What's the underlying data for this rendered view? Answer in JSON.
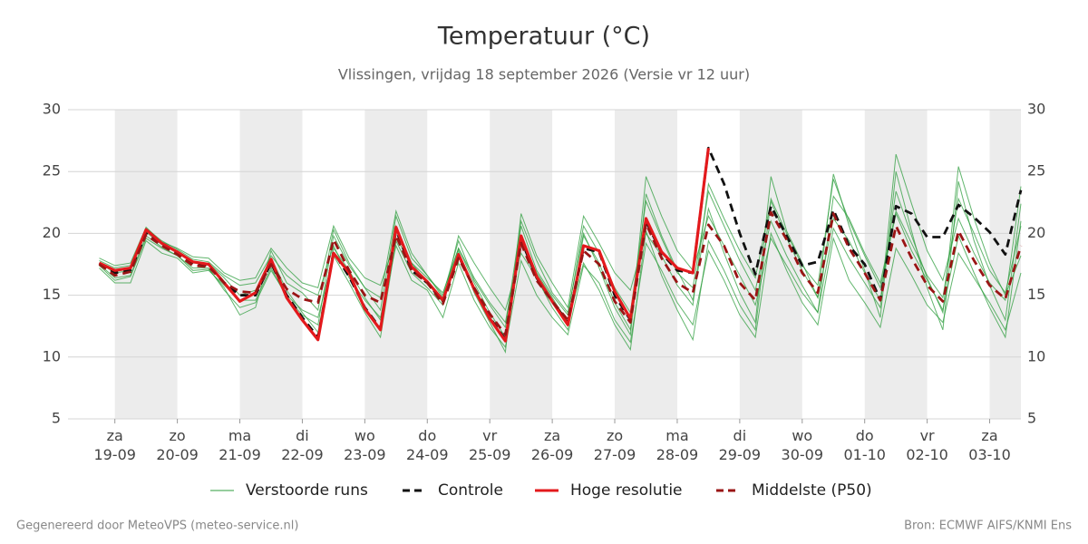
{
  "chart_data": {
    "type": "line",
    "title": "Temperatuur (°C)",
    "subtitle": "Vlissingen, vrijdag 18 september 2026 (Versie vr 12 uur)",
    "footer_left": "Gegenereerd door MeteoVPS (meteo-service.nl)",
    "footer_right": "Bron: ECMWF AIFS/KNMI Ens",
    "x": [
      -0.25,
      0,
      0.25,
      0.5,
      0.75,
      1,
      1.25,
      1.5,
      1.75,
      2,
      2.25,
      2.5,
      2.75,
      3,
      3.25,
      3.5,
      3.75,
      4,
      4.25,
      4.5,
      4.75,
      5,
      5.25,
      5.5,
      5.75,
      6,
      6.25,
      6.5,
      6.75,
      7,
      7.25,
      7.5,
      7.75,
      8,
      8.25,
      8.5,
      8.75,
      9,
      9.25,
      9.5,
      9.75,
      10,
      10.25,
      10.5,
      10.75,
      11,
      11.25,
      11.5,
      11.75,
      12,
      12.25,
      12.5,
      12.75,
      13,
      13.25,
      13.5,
      13.75,
      14,
      14.25,
      14.5
    ],
    "xlim": [
      -0.75,
      14.5
    ],
    "xticks": [
      {
        "value": 0,
        "label": "za\n19-09"
      },
      {
        "value": 1,
        "label": "zo\n20-09"
      },
      {
        "value": 2,
        "label": "ma\n21-09"
      },
      {
        "value": 3,
        "label": "di\n22-09"
      },
      {
        "value": 4,
        "label": "wo\n23-09"
      },
      {
        "value": 5,
        "label": "do\n24-09"
      },
      {
        "value": 6,
        "label": "vr\n25-09"
      },
      {
        "value": 7,
        "label": "za\n26-09"
      },
      {
        "value": 8,
        "label": "zo\n27-09"
      },
      {
        "value": 9,
        "label": "ma\n28-09"
      },
      {
        "value": 10,
        "label": "di\n29-09"
      },
      {
        "value": 11,
        "label": "wo\n30-09"
      },
      {
        "value": 12,
        "label": "do\n01-10"
      },
      {
        "value": 13,
        "label": "vr\n02-10"
      },
      {
        "value": 14,
        "label": "za\n03-10"
      }
    ],
    "ylim": [
      5,
      30
    ],
    "yticks": [
      5,
      10,
      15,
      20,
      25,
      30
    ],
    "grid": true,
    "ensemble": {
      "name": "Verstoorde runs",
      "color": "#2e9e3e",
      "members": [
        [
          17.4,
          16.2,
          16.5,
          19.6,
          18.8,
          18.2,
          17.0,
          17.1,
          15.6,
          13.4,
          14.0,
          18.6,
          16.0,
          15.2,
          13.8,
          20.3,
          17.6,
          15.6,
          13.8,
          21.4,
          18.0,
          16.6,
          15.0,
          19.4,
          16.2,
          14.2,
          12.4,
          21.0,
          17.8,
          15.2,
          13.6,
          20.0,
          17.2,
          14.0,
          11.8,
          23.2,
          19.8,
          17.0,
          14.6,
          22.0,
          18.4,
          15.2,
          12.8,
          24.6,
          20.2,
          17.6,
          14.8,
          24.8,
          20.6,
          17.0,
          13.2,
          25.0,
          20.2,
          15.6,
          12.2,
          24.2,
          19.4,
          15.8,
          13.0,
          22.4
        ],
        [
          17.8,
          17.2,
          17.4,
          20.4,
          19.4,
          18.7,
          17.9,
          17.7,
          16.6,
          15.8,
          16.0,
          18.2,
          16.6,
          15.6,
          15.0,
          19.0,
          16.4,
          14.6,
          13.2,
          19.0,
          16.2,
          15.4,
          13.2,
          17.6,
          14.6,
          12.4,
          10.8,
          17.8,
          15.0,
          13.2,
          11.8,
          17.4,
          16.0,
          13.0,
          11.2,
          19.2,
          17.0,
          14.4,
          12.6,
          18.6,
          16.2,
          13.4,
          11.6,
          20.0,
          17.0,
          14.4,
          12.6,
          19.6,
          16.2,
          14.4,
          12.4,
          18.8,
          16.6,
          14.2,
          12.8,
          18.4,
          16.4,
          14.4,
          12.2,
          16.8
        ],
        [
          17.6,
          16.8,
          17.0,
          20.1,
          19.1,
          18.6,
          17.6,
          17.6,
          16.4,
          15.0,
          15.4,
          18.0,
          15.4,
          13.6,
          12.0,
          18.8,
          17.0,
          14.8,
          13.0,
          20.6,
          17.6,
          16.4,
          15.2,
          18.8,
          16.0,
          13.6,
          11.6,
          20.6,
          17.0,
          15.0,
          13.4,
          20.6,
          18.4,
          15.6,
          13.6,
          22.6,
          19.6,
          16.8,
          15.6,
          23.4,
          20.6,
          17.8,
          15.4,
          21.0,
          18.2,
          15.8,
          13.6,
          23.0,
          21.2,
          18.4,
          16.0,
          21.8,
          19.2,
          16.6,
          14.8,
          22.8,
          20.0,
          17.0,
          15.2,
          20.6
        ],
        [
          17.2,
          16.0,
          16.0,
          19.4,
          18.4,
          18.0,
          16.8,
          17.0,
          15.8,
          14.6,
          14.6,
          17.2,
          14.8,
          13.4,
          12.6,
          19.8,
          17.4,
          15.6,
          14.8,
          21.8,
          18.4,
          16.6,
          14.8,
          18.8,
          16.4,
          14.4,
          12.8,
          19.6,
          16.8,
          14.8,
          12.8,
          17.6,
          15.4,
          12.6,
          10.6,
          20.2,
          16.6,
          13.8,
          11.4,
          19.4,
          17.0,
          14.2,
          12.2,
          22.8,
          20.0,
          17.4,
          15.8,
          24.4,
          21.0,
          18.2,
          15.6,
          21.6,
          18.6,
          16.2,
          13.8,
          19.8,
          16.8,
          14.0,
          11.6,
          21.0
        ],
        [
          18.0,
          17.4,
          17.6,
          20.5,
          19.3,
          18.8,
          18.1,
          18.0,
          16.8,
          16.2,
          16.4,
          18.8,
          17.2,
          16.0,
          15.6,
          20.6,
          18.0,
          16.4,
          15.8,
          19.6,
          17.6,
          16.0,
          14.4,
          19.8,
          17.6,
          15.6,
          13.8,
          18.4,
          16.4,
          14.0,
          12.2,
          19.8,
          17.6,
          14.4,
          12.2,
          24.6,
          21.4,
          18.6,
          17.0,
          21.4,
          19.0,
          16.6,
          14.2,
          19.6,
          17.4,
          15.2,
          13.6,
          20.4,
          18.0,
          16.0,
          14.0,
          26.4,
          22.4,
          18.6,
          16.2,
          21.2,
          18.4,
          16.0,
          14.6,
          23.8
        ],
        [
          17.5,
          16.4,
          16.6,
          19.8,
          18.9,
          18.2,
          17.2,
          17.2,
          15.4,
          14.0,
          14.4,
          17.0,
          15.0,
          13.8,
          13.2,
          18.2,
          16.0,
          13.6,
          11.6,
          19.4,
          16.8,
          15.6,
          14.2,
          18.6,
          15.2,
          12.8,
          10.4,
          21.6,
          18.2,
          16.0,
          14.0,
          21.4,
          19.2,
          16.8,
          15.4,
          20.0,
          18.2,
          15.8,
          14.2,
          24.0,
          21.2,
          18.6,
          16.4,
          22.6,
          19.6,
          17.0,
          14.8,
          21.2,
          19.4,
          16.8,
          14.6,
          23.4,
          19.8,
          16.4,
          13.6,
          25.4,
          21.2,
          17.6,
          15.0,
          18.2
        ]
      ]
    },
    "series": [
      {
        "name": "Controle",
        "color": "#111111",
        "dashed": true,
        "values": [
          17.6,
          16.8,
          17.0,
          20.0,
          19.0,
          18.4,
          17.5,
          17.4,
          16.0,
          15.0,
          15.0,
          17.6,
          15.0,
          13.2,
          11.6,
          18.5,
          16.5,
          14.0,
          12.3,
          20.3,
          17.0,
          16.0,
          14.5,
          18.2,
          15.5,
          13.2,
          11.4,
          19.5,
          16.4,
          14.5,
          12.8,
          18.8,
          18.5,
          15.0,
          13.0,
          21.0,
          18.4,
          17.0,
          16.8,
          26.9,
          24.0,
          20.0,
          16.7,
          22.2,
          19.8,
          17.4,
          17.7,
          21.9,
          19.0,
          17.5,
          14.6,
          22.2,
          21.6,
          19.7,
          19.7,
          22.3,
          21.3,
          20.1,
          18.3,
          23.5
        ]
      },
      {
        "name": "Hoge resolutie",
        "color": "#e3191c",
        "dashed": false,
        "values": [
          17.6,
          17.0,
          17.2,
          20.3,
          19.2,
          18.5,
          17.7,
          17.5,
          16.0,
          14.5,
          15.2,
          17.9,
          14.8,
          13.0,
          11.4,
          18.4,
          16.8,
          13.9,
          12.2,
          20.5,
          17.3,
          16.1,
          14.6,
          18.3,
          15.5,
          13.1,
          11.3,
          19.8,
          16.5,
          14.5,
          12.6,
          19.0,
          18.6,
          15.3,
          13.1,
          21.2,
          18.5,
          17.2,
          16.8,
          26.9,
          null,
          null,
          null,
          null,
          null,
          null,
          null,
          null,
          null,
          null,
          null,
          null,
          null,
          null,
          null,
          null,
          null,
          null,
          null,
          null
        ]
      },
      {
        "name": "Middelste (P50)",
        "color": "#9a1515",
        "dashed": true,
        "values": [
          17.5,
          16.6,
          16.9,
          19.9,
          19.0,
          18.3,
          17.4,
          17.3,
          16.0,
          15.3,
          15.2,
          17.5,
          15.5,
          14.7,
          14.4,
          19.5,
          17.0,
          15.0,
          14.4,
          19.8,
          17.0,
          16.0,
          14.3,
          18.0,
          15.6,
          13.5,
          11.8,
          19.2,
          16.2,
          14.5,
          13.0,
          18.6,
          17.5,
          14.5,
          12.8,
          20.8,
          18.0,
          16.0,
          15.2,
          20.7,
          19.0,
          16.0,
          14.6,
          21.7,
          19.5,
          16.8,
          15.2,
          21.6,
          18.8,
          16.8,
          14.6,
          20.6,
          18.0,
          15.8,
          14.5,
          20.2,
          17.8,
          15.8,
          14.7,
          19.0
        ]
      }
    ]
  }
}
